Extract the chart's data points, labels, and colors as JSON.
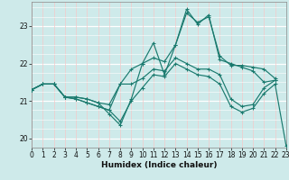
{
  "xlabel": "Humidex (Indice chaleur)",
  "background_color": "#ceeaea",
  "grid_color_h": "#ffffff",
  "grid_color_v": "#f5c8c8",
  "line_color": "#1a7a6e",
  "xlim": [
    0,
    23
  ],
  "ylim": [
    19.75,
    23.65
  ],
  "yticks": [
    20,
    21,
    22,
    23
  ],
  "xticks": [
    0,
    1,
    2,
    3,
    4,
    5,
    6,
    7,
    8,
    9,
    10,
    11,
    12,
    13,
    14,
    15,
    16,
    17,
    18,
    19,
    20,
    21,
    22,
    23
  ],
  "series": [
    [
      21.3,
      21.45,
      21.45,
      21.1,
      21.1,
      21.05,
      20.95,
      20.9,
      21.45,
      21.85,
      22.0,
      22.15,
      22.05,
      22.5,
      23.35,
      23.1,
      23.25,
      22.2,
      21.95,
      21.95,
      21.9,
      21.85,
      21.6,
      null
    ],
    [
      21.3,
      21.45,
      21.45,
      21.1,
      21.1,
      21.05,
      20.95,
      20.65,
      20.35,
      21.05,
      22.0,
      22.55,
      21.7,
      22.5,
      23.45,
      23.05,
      23.3,
      22.1,
      22.0,
      21.9,
      21.8,
      21.5,
      21.55,
      null
    ],
    [
      21.3,
      21.45,
      21.45,
      21.1,
      21.05,
      20.95,
      20.85,
      20.75,
      21.45,
      21.45,
      21.6,
      21.85,
      21.8,
      22.15,
      22.0,
      21.85,
      21.85,
      21.7,
      21.05,
      20.85,
      20.9,
      21.35,
      21.55,
      null
    ],
    [
      21.3,
      21.45,
      21.45,
      21.1,
      21.05,
      20.95,
      20.85,
      20.75,
      20.45,
      21.0,
      21.35,
      21.7,
      21.65,
      22.0,
      21.85,
      21.7,
      21.65,
      21.45,
      20.85,
      20.7,
      20.8,
      21.2,
      21.45,
      19.8
    ]
  ]
}
